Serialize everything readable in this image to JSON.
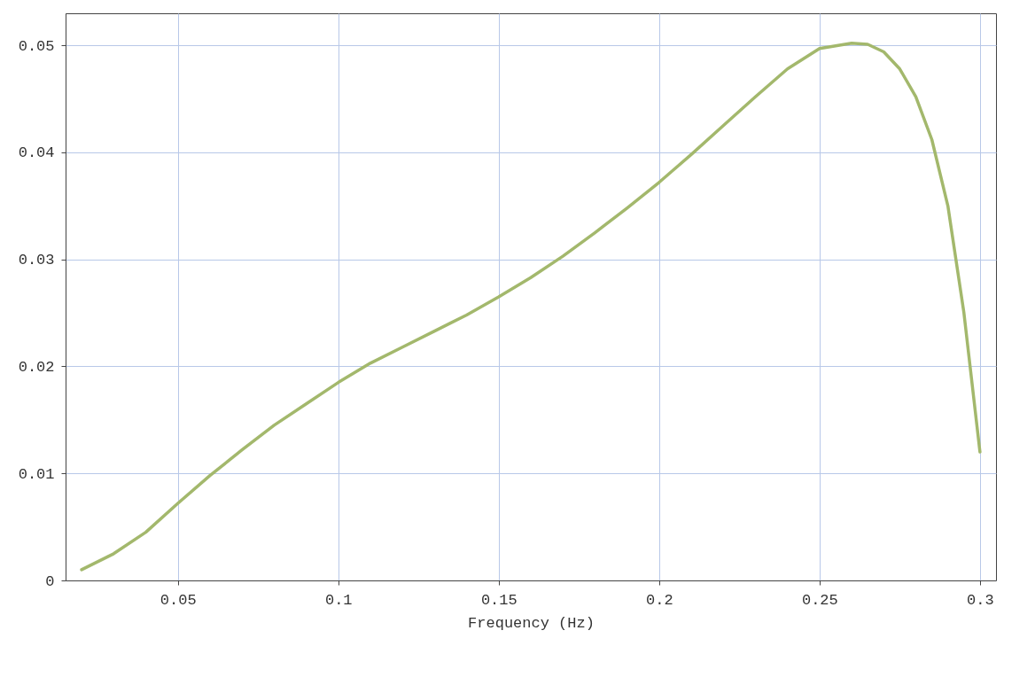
{
  "chart_data": {
    "type": "line",
    "xlabel": "Frequency (Hz)",
    "xlim": [
      0.015,
      0.305
    ],
    "xticks": [
      0.05,
      0.1,
      0.15,
      0.2,
      0.25,
      0.3
    ],
    "ylim": [
      0,
      0.053
    ],
    "yticks": [
      0,
      0.01,
      0.02,
      0.03,
      0.04,
      0.05
    ],
    "grid": true,
    "marker": "none",
    "line_style": "solid",
    "series": [
      {
        "color": "#a3b86c",
        "x": [
          0.02,
          0.03,
          0.04,
          0.05,
          0.06,
          0.07,
          0.08,
          0.09,
          0.1,
          0.11,
          0.12,
          0.13,
          0.14,
          0.15,
          0.16,
          0.17,
          0.18,
          0.19,
          0.2,
          0.21,
          0.22,
          0.23,
          0.24,
          0.25,
          0.26,
          0.265,
          0.27,
          0.275,
          0.28,
          0.285,
          0.29,
          0.295,
          0.3
        ],
        "values": [
          0.001,
          0.0025,
          0.0045,
          0.0072,
          0.0098,
          0.0122,
          0.0145,
          0.0165,
          0.0185,
          0.0203,
          0.0218,
          0.0233,
          0.0248,
          0.0265,
          0.0283,
          0.0303,
          0.0325,
          0.0348,
          0.0372,
          0.0398,
          0.0425,
          0.0452,
          0.0478,
          0.0497,
          0.0502,
          0.0501,
          0.0494,
          0.0478,
          0.0452,
          0.0412,
          0.035,
          0.025,
          0.012
        ]
      }
    ]
  }
}
